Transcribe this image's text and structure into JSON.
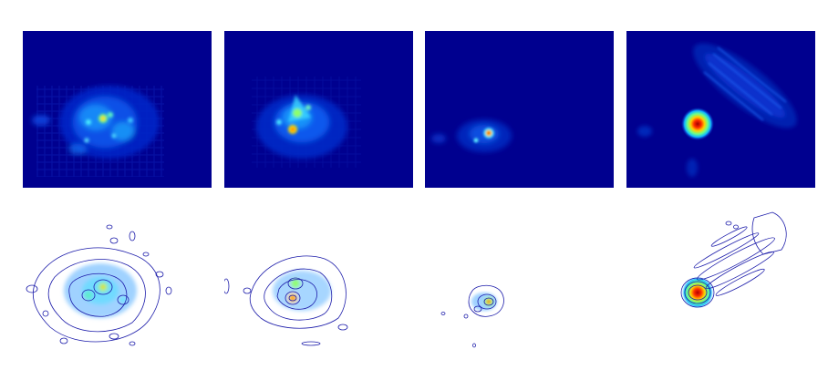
{
  "figure": {
    "rows": 2,
    "columns": 4,
    "colormap": "jet",
    "heatmap_background": "#00008f",
    "contour_line_color": "#1c1caa",
    "contour_background": "#ffffff"
  }
}
